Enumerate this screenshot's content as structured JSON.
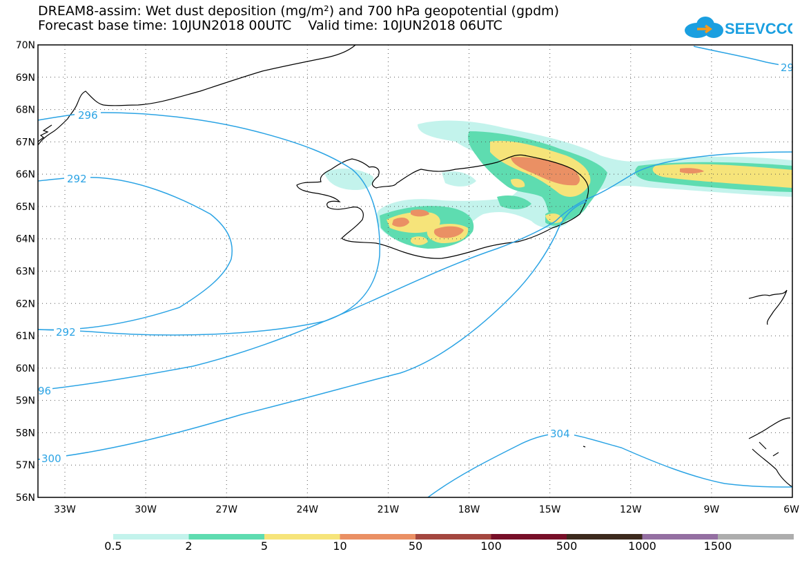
{
  "title_line1": "DREAM8-assim: Wet dust deposition (mg/m²) and 700 hPa geopotential (gpdm)",
  "title_line2": "Forecast base time: 10JUN2018 00UTC    Valid time: 10JUN2018 06UTC",
  "logo_text": "SEEVCCC",
  "lat_labels": [
    "70N",
    "69N",
    "68N",
    "67N",
    "66N",
    "65N",
    "64N",
    "63N",
    "62N",
    "61N",
    "60N",
    "59N",
    "58N",
    "57N",
    "56N"
  ],
  "lon_labels": [
    "33W",
    "30W",
    "27W",
    "24W",
    "21W",
    "18W",
    "15W",
    "12W",
    "9W",
    "6W"
  ],
  "contour_labels": [
    "296",
    "292",
    "292",
    "96",
    "300",
    "304",
    "29"
  ],
  "colorbar": {
    "ticks": [
      "0.5",
      "2",
      "5",
      "10",
      "50",
      "100",
      "500",
      "1000",
      "1500"
    ],
    "colors": [
      "#c3f3ec",
      "#5edcb0",
      "#f6e47a",
      "#ea9064",
      "#a4473f",
      "#770f28",
      "#3c2a1d",
      "#946fa2",
      "#adadad"
    ]
  },
  "colors": {
    "contour": "#2aa3e4",
    "coast": "#000000"
  }
}
